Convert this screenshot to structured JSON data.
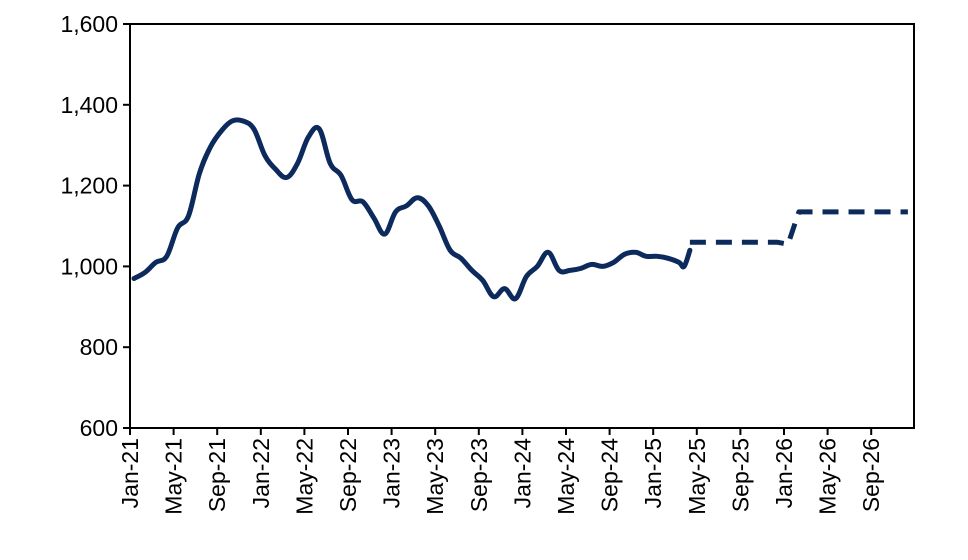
{
  "chart_data": {
    "type": "line",
    "ylim": [
      600,
      1600
    ],
    "yticks": [
      600,
      800,
      1000,
      1200,
      1400,
      1600
    ],
    "ytick_labels": [
      "600",
      "800",
      "1,000",
      "1,200",
      "1,400",
      "1,600"
    ],
    "xtick_labels": [
      "Jan-21",
      "May-21",
      "Sep-21",
      "Jan-22",
      "May-22",
      "Sep-22",
      "Jan-23",
      "May-23",
      "Sep-23",
      "Jan-24",
      "May-24",
      "Sep-24",
      "Jan-25",
      "May-25",
      "Sep-25",
      "Jan-26",
      "May-26",
      "Sep-26"
    ],
    "grid": false,
    "legend": "none",
    "series": [
      {
        "style": "solid",
        "color": "#0d2a5c",
        "points": [
          [
            "2021-01",
            970
          ],
          [
            "2021-02",
            985
          ],
          [
            "2021-03",
            1010
          ],
          [
            "2021-04",
            1025
          ],
          [
            "2021-05",
            1095
          ],
          [
            "2021-06",
            1125
          ],
          [
            "2021-07",
            1230
          ],
          [
            "2021-08",
            1295
          ],
          [
            "2021-09",
            1335
          ],
          [
            "2021-10",
            1360
          ],
          [
            "2021-11",
            1360
          ],
          [
            "2021-12",
            1340
          ],
          [
            "2022-01",
            1275
          ],
          [
            "2022-02",
            1240
          ],
          [
            "2022-03",
            1220
          ],
          [
            "2022-04",
            1255
          ],
          [
            "2022-05",
            1320
          ],
          [
            "2022-06",
            1340
          ],
          [
            "2022-07",
            1255
          ],
          [
            "2022-08",
            1225
          ],
          [
            "2022-09",
            1165
          ],
          [
            "2022-10",
            1160
          ],
          [
            "2022-11",
            1120
          ],
          [
            "2022-12",
            1080
          ],
          [
            "2023-01",
            1135
          ],
          [
            "2023-02",
            1150
          ],
          [
            "2023-03",
            1170
          ],
          [
            "2023-04",
            1150
          ],
          [
            "2023-05",
            1100
          ],
          [
            "2023-06",
            1040
          ],
          [
            "2023-07",
            1020
          ],
          [
            "2023-08",
            990
          ],
          [
            "2023-09",
            965
          ],
          [
            "2023-10",
            925
          ],
          [
            "2023-11",
            945
          ],
          [
            "2023-12",
            920
          ],
          [
            "2024-01",
            975
          ],
          [
            "2024-02",
            1000
          ],
          [
            "2024-03",
            1035
          ],
          [
            "2024-04",
            990
          ],
          [
            "2024-05",
            990
          ],
          [
            "2024-06",
            995
          ],
          [
            "2024-07",
            1005
          ],
          [
            "2024-08",
            1000
          ],
          [
            "2024-09",
            1010
          ],
          [
            "2024-10",
            1030
          ],
          [
            "2024-11",
            1035
          ],
          [
            "2024-12",
            1025
          ],
          [
            "2025-01",
            1025
          ],
          [
            "2025-02",
            1020
          ],
          [
            "2025-03",
            1010
          ],
          [
            "2025-03-15",
            1000
          ],
          [
            "2025-04",
            1040
          ]
        ]
      },
      {
        "style": "dashed",
        "color": "#0d2a5c",
        "points": [
          [
            "2025-04",
            1060
          ],
          [
            "2025-12",
            1060
          ],
          [
            "2026-01",
            1055
          ],
          [
            "2026-02",
            1135
          ],
          [
            "2026-12",
            1135
          ]
        ]
      }
    ]
  }
}
